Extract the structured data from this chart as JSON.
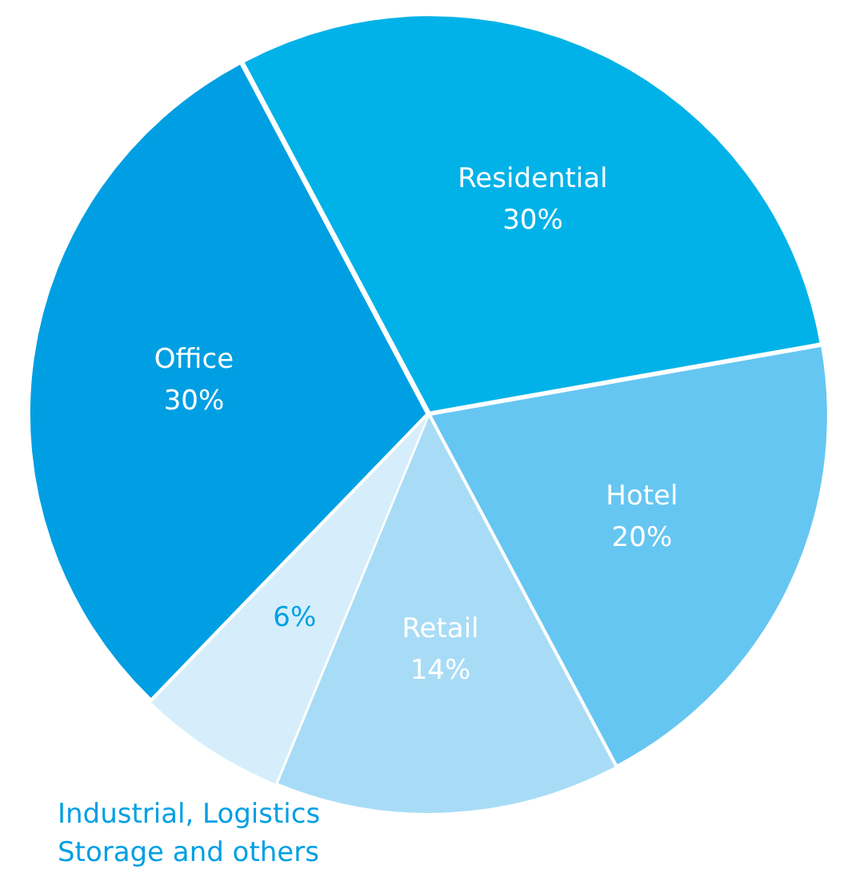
{
  "chart_data": {
    "type": "pie",
    "categories": [
      "Residential",
      "Hotel",
      "Retail",
      "Industrial, Logistics Storage and others",
      "Office"
    ],
    "values": [
      30,
      20,
      14,
      6,
      30
    ],
    "value_labels": [
      "30%",
      "20%",
      "14%",
      "6%",
      "30%"
    ],
    "colors": [
      "#00b2e8",
      "#66c6f2",
      "#a8dcf6",
      "#d6eefb",
      "#009fe3"
    ],
    "legend": false
  }
}
